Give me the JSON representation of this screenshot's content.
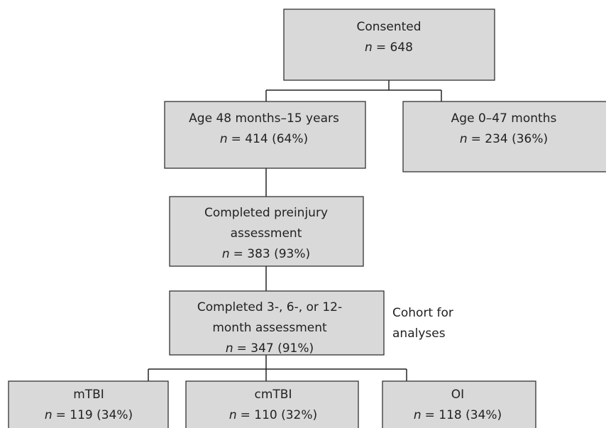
{
  "nodes": [
    {
      "label": [
        "Consented"
      ],
      "n": "n",
      "count": "= 648"
    },
    {
      "label": [
        "Age 48 months–15 years"
      ],
      "n": "n",
      "count": "= 414 (64%)"
    },
    {
      "label": [
        "Age 0–47 months"
      ],
      "n": "n",
      "count": "= 234 (36%)"
    },
    {
      "label": [
        "Completed preinjury",
        "assessment"
      ],
      "n": "n",
      "count": "= 383 (93%)"
    },
    {
      "label": [
        "Completed 3-, 6-, or 12-",
        "month assessment"
      ],
      "n": "n",
      "count": "= 347 (91%)"
    },
    {
      "label": [
        "mTBI"
      ],
      "n": "n",
      "count": "= 119 (34%)"
    },
    {
      "label": [
        "cmTBI"
      ],
      "n": "n",
      "count": "= 110 (32%)"
    },
    {
      "label": [
        "OI"
      ],
      "n": "n",
      "count": "= 118 (34%)"
    }
  ],
  "annotation": [
    "Cohort for",
    "analyses"
  ]
}
